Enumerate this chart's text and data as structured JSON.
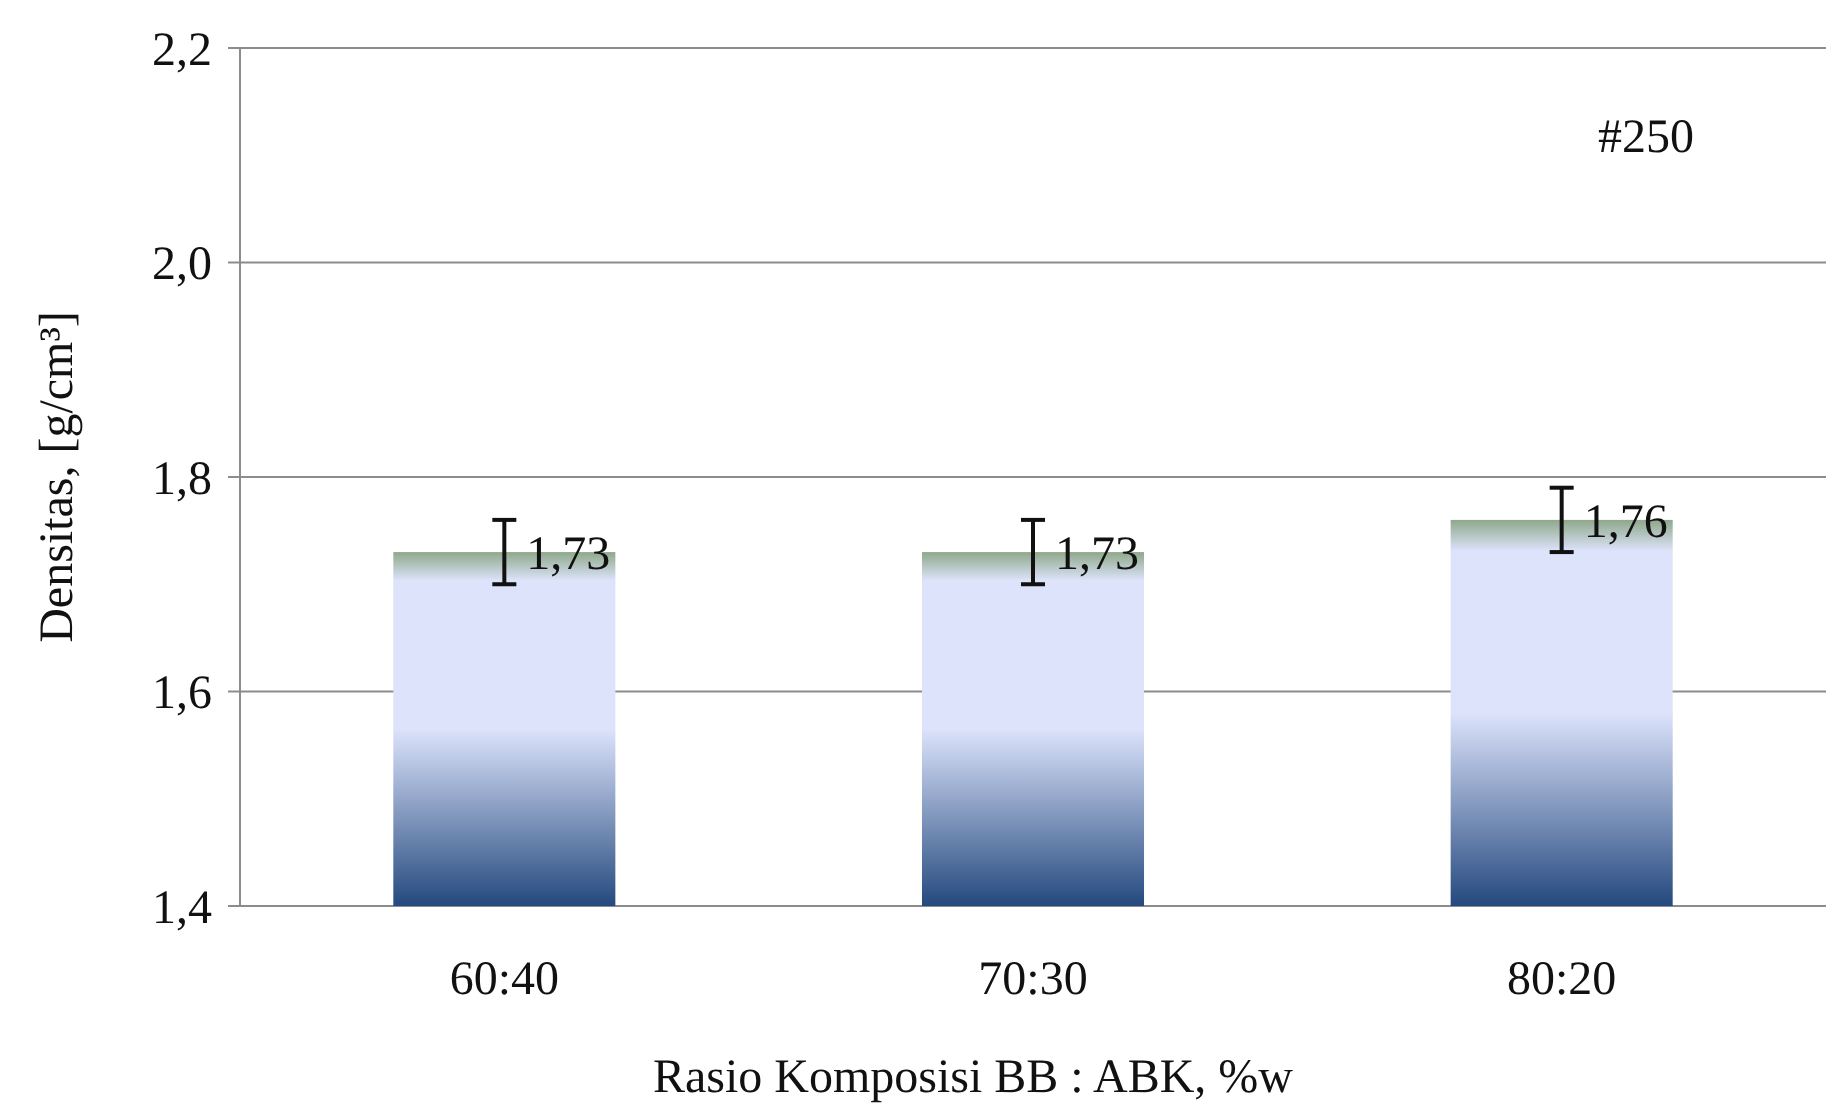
{
  "chart_data": {
    "type": "bar",
    "xlabel": "Rasio Komposisi BB : ABK, %w",
    "ylabel": "Densitas, [g/cm³]",
    "categories": [
      "60:40",
      "70:30",
      "80:20"
    ],
    "values": [
      1.73,
      1.73,
      1.76
    ],
    "value_labels": [
      "1,73",
      "1,73",
      "1,76"
    ],
    "errors": [
      0.03,
      0.03,
      0.03
    ],
    "color": "#dce3fb",
    "ylim": [
      1.4,
      2.2
    ],
    "yticks": [
      {
        "value": 1.4,
        "label": "1,4"
      },
      {
        "value": 1.6,
        "label": "1,6"
      },
      {
        "value": 1.8,
        "label": "1,8"
      },
      {
        "value": 2.0,
        "label": "2,0"
      },
      {
        "value": 2.2,
        "label": "2,2"
      }
    ],
    "grid": "y",
    "annotations": [
      {
        "text": "#250"
      }
    ]
  }
}
